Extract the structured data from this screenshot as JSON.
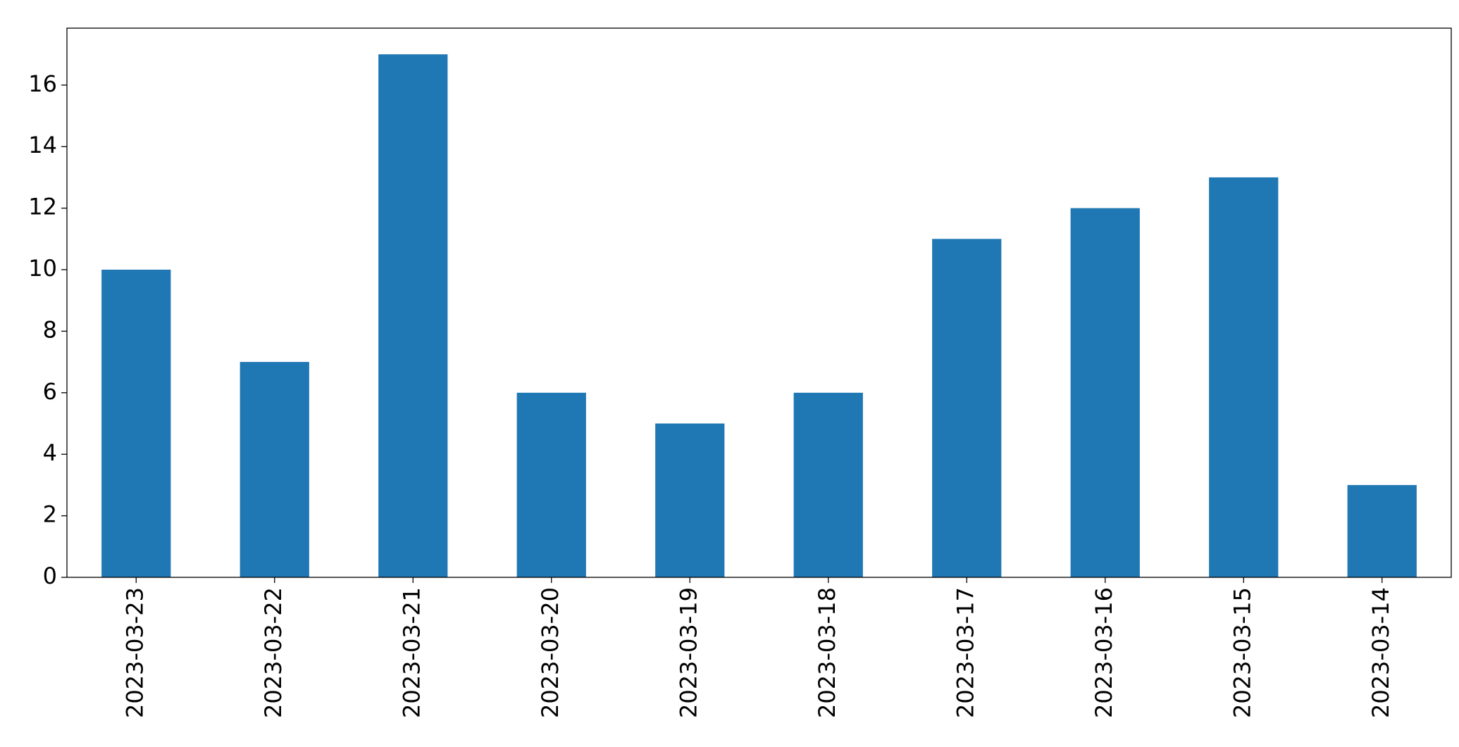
{
  "chart_data": {
    "type": "bar",
    "categories": [
      "2023-03-23",
      "2023-03-22",
      "2023-03-21",
      "2023-03-20",
      "2023-03-19",
      "2023-03-18",
      "2023-03-17",
      "2023-03-16",
      "2023-03-15",
      "2023-03-14"
    ],
    "values": [
      10,
      7,
      17,
      6,
      5,
      6,
      11,
      12,
      13,
      3
    ],
    "color": "#1f77b4",
    "ylim": [
      0,
      17.85
    ],
    "yticks": [
      0,
      2,
      4,
      6,
      8,
      10,
      12,
      14,
      16
    ],
    "grid": false
  }
}
